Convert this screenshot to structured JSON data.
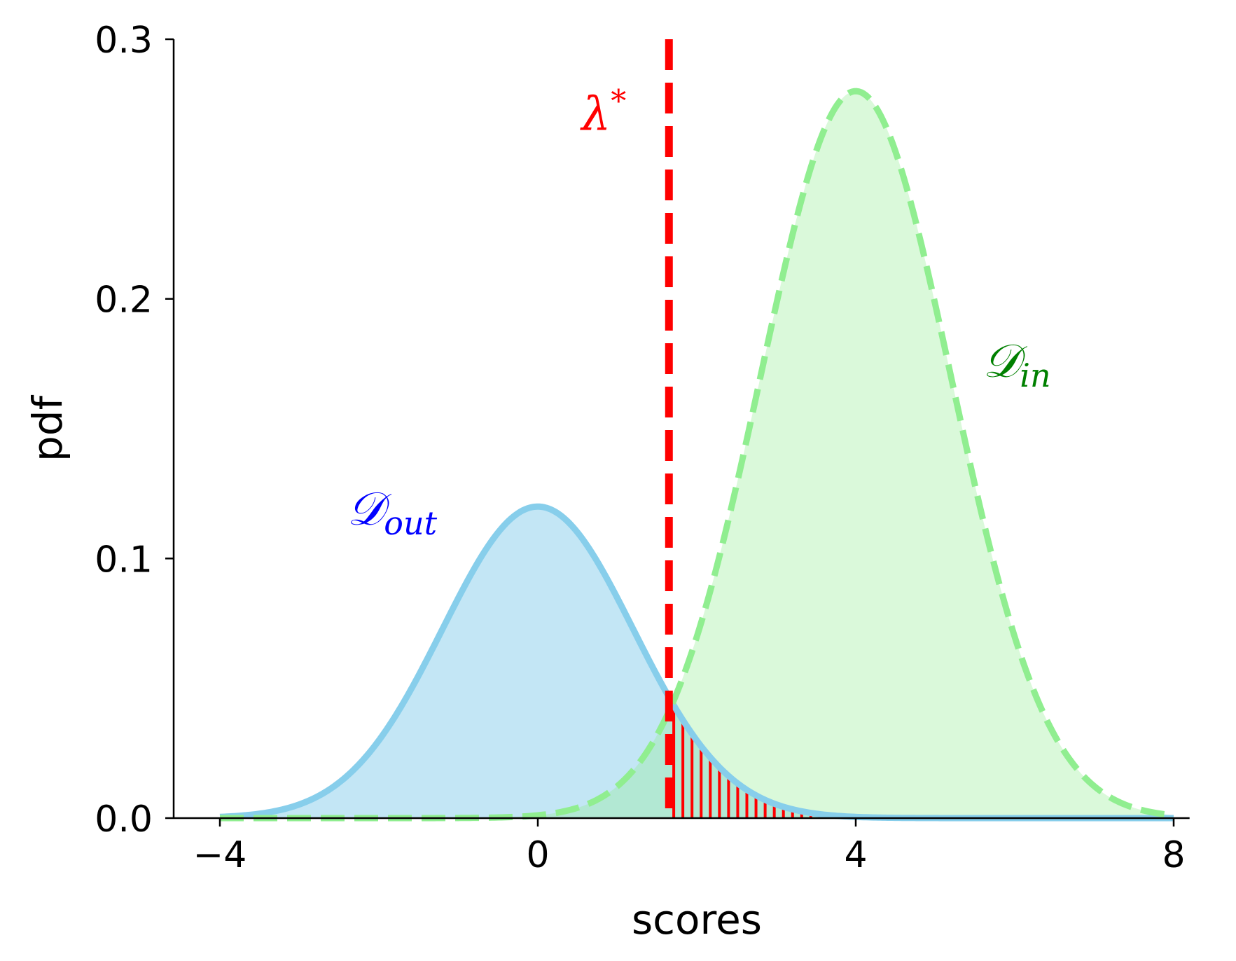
{
  "chart_data": {
    "type": "area",
    "xlabel": "scores",
    "ylabel": "pdf",
    "xlim": [
      -4.2,
      8.2
    ],
    "ylim": [
      0,
      0.3
    ],
    "xticks": [
      -4,
      0,
      4,
      8
    ],
    "xtick_labels": [
      "−4",
      "0",
      "4",
      "8"
    ],
    "yticks": [
      0.0,
      0.1,
      0.2,
      0.3
    ],
    "ytick_labels": [
      "0.0",
      "0.1",
      "0.2",
      "0.3"
    ],
    "grid": false,
    "series": [
      {
        "name": "𝒟out",
        "distribution": "normal",
        "mean": 0,
        "std": 1.2,
        "peak": 0.12,
        "x_range": [
          -4,
          8
        ],
        "line_style": "solid",
        "line_color": "#87ceeb",
        "fill_color": "#87ceeb",
        "fill_opacity": 0.5
      },
      {
        "name": "𝒟in",
        "distribution": "normal",
        "mean": 4,
        "std": 1.2,
        "peak": 0.28,
        "x_range": [
          -4,
          8
        ],
        "line_style": "dashed",
        "line_color": "#90ee90",
        "fill_color": "#90ee90",
        "fill_opacity": 0.33
      }
    ],
    "threshold": {
      "label": "λ*",
      "x": 1.65,
      "color": "#ff0000",
      "line_style": "dashed"
    },
    "hatched_region": {
      "description": "area under 𝒟out to the right of λ*",
      "x_from": 1.65,
      "x_to": 4.0,
      "color": "#ff0000"
    },
    "annotations": [
      {
        "text_main": "λ",
        "text_sup": "*",
        "x": 0.55,
        "y": 0.265,
        "color": "#ff0000"
      },
      {
        "text_main": "𝒟",
        "text_sub": "out",
        "x": -2.4,
        "y": 0.113,
        "color": "#0000ff"
      },
      {
        "text_main": "𝒟",
        "text_sub": "in",
        "x": 5.6,
        "y": 0.17,
        "color": "#008000"
      }
    ]
  }
}
